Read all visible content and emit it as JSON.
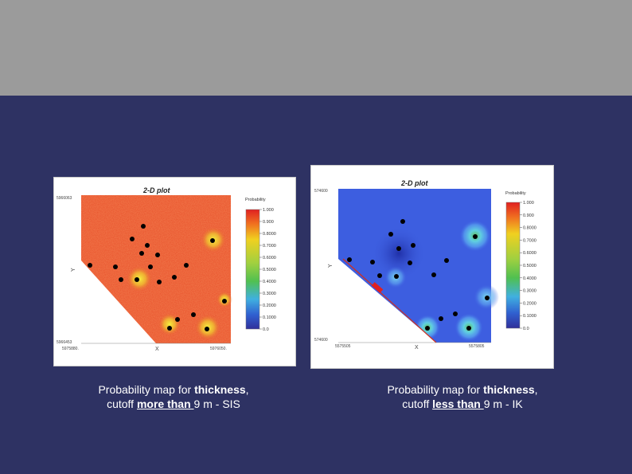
{
  "slide": {
    "colors": {
      "top_band": "#9b9b9b",
      "background": "#2e3263",
      "caption_text": "#ffffff"
    }
  },
  "left_plot": {
    "title": "2-D plot",
    "x_axis_label": "X",
    "y_axis_label": "Y",
    "y_top_tick": "5966063",
    "y_bottom_tick": "5966453",
    "x_left_tick": "5975880.",
    "x_right_tick": "5976050.",
    "legend_title": "Probability",
    "legend_ticks": [
      "1.000",
      "0.900",
      "0.8000",
      "0.7000",
      "0.6000",
      "0.5000",
      "0.4000",
      "0.3000",
      "0.2000",
      "0.1000",
      "0.0"
    ]
  },
  "right_plot": {
    "title": "2-D plot",
    "x_axis_label": "X",
    "y_axis_label": "Y",
    "y_top_tick": "574600",
    "y_bottom_tick": "574600",
    "x_left_tick": "5575505",
    "x_right_tick": "5575805",
    "legend_title": "Probability",
    "legend_ticks": [
      "1.000",
      "0.900",
      "0.8000",
      "0.7000",
      "0.6000",
      "0.5000",
      "0.4000",
      "0.3000",
      "0.2000",
      "0.1000",
      "0.0"
    ]
  },
  "captions": {
    "left": {
      "line1_prefix": "Probability map for ",
      "line1_bold": "thickness",
      "line1_suffix": ",",
      "line2_prefix": "cutoff ",
      "line2_underlined": "more than ",
      "line2_suffix": "9 m - SIS"
    },
    "right": {
      "line1_prefix": "Probability map for ",
      "line1_bold": "thickness",
      "line1_suffix": ",",
      "line2_prefix": "cutoff ",
      "line2_underlined": "less than ",
      "line2_suffix": "9 m - IK"
    }
  }
}
